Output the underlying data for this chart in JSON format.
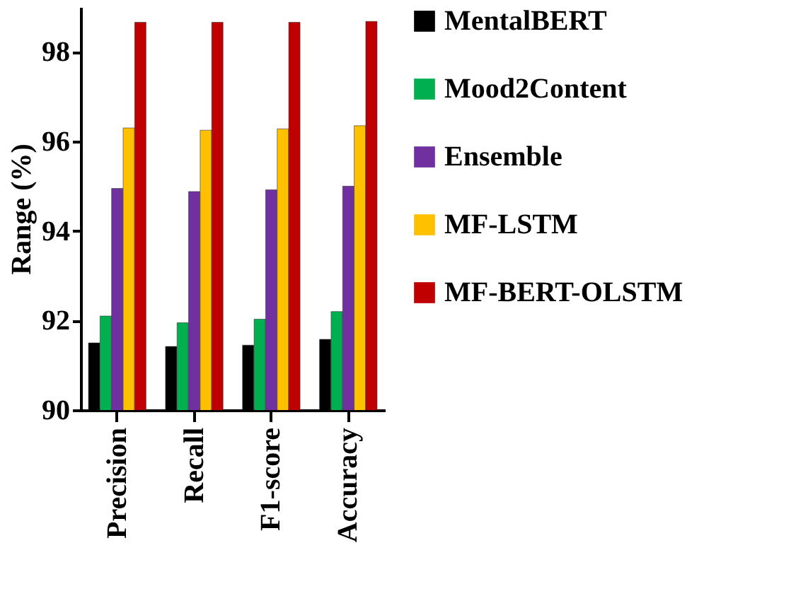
{
  "chart_data": {
    "type": "bar",
    "ylabel": "Range (%)",
    "categories": [
      "Precision",
      "Recall",
      "F1-score",
      "Accuracy"
    ],
    "series": [
      {
        "name": "MentalBERT",
        "color": "#000000",
        "values": [
          91.5,
          91.42,
          91.45,
          91.58
        ]
      },
      {
        "name": "Mood2Content",
        "color": "#00b050",
        "values": [
          92.1,
          91.95,
          92.03,
          92.2
        ]
      },
      {
        "name": "Ensemble",
        "color": "#7030a0",
        "values": [
          94.95,
          94.88,
          94.92,
          95.0
        ]
      },
      {
        "name": "MF-LSTM",
        "color": "#ffc000",
        "values": [
          96.3,
          96.25,
          96.28,
          96.35
        ]
      },
      {
        "name": "MF-BERT-OLSTM",
        "color": "#c00000",
        "values": [
          98.66,
          98.66,
          98.66,
          98.68
        ]
      }
    ],
    "ylim": [
      90,
      99
    ],
    "yticks": [
      90,
      92,
      94,
      96,
      98
    ],
    "grid": false,
    "legend": "right"
  }
}
